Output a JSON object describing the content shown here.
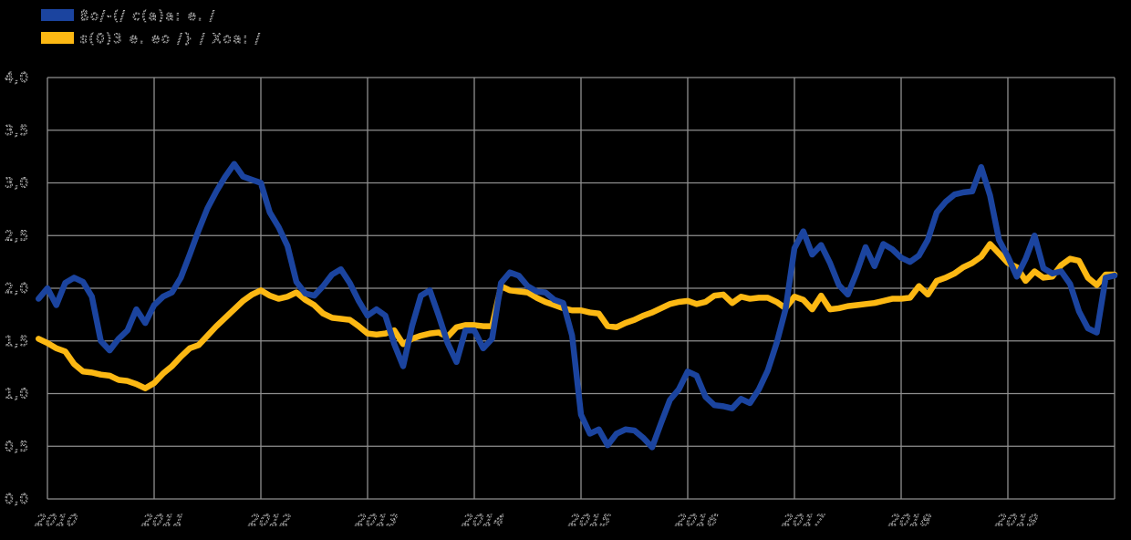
{
  "background_color": "#000000",
  "grid_color": "#8f8f8f",
  "label_color": "#b5b5b5",
  "chart_data": {
    "type": "line",
    "title": "",
    "xlabel": "",
    "ylabel": "",
    "grid": true,
    "legend_position": "top-left",
    "decimal_separator": ",",
    "ylim": [
      0,
      4
    ],
    "ytick_step": 0.5,
    "ytick_labels": [
      "0,0",
      "0,5",
      "1,0",
      "1,5",
      "2,0",
      "2,5",
      "3,0",
      "3,5",
      "4,0"
    ],
    "x_axis": {
      "labels": [
        "2010",
        "2011",
        "2012",
        "2013",
        "2014",
        "2015",
        "2016",
        "2017",
        "2018",
        "2019"
      ],
      "gridlines_every": "1 year",
      "label_style": "slanted outline"
    },
    "x_range": {
      "start": "2009-12",
      "end": "2020-01",
      "step": "1 month"
    },
    "series": [
      {
        "name": "ßo/-(/ c(a)a: e. /",
        "color": "#1b449f",
        "values": [
          1.9,
          2.0,
          1.84,
          2.05,
          2.1,
          2.06,
          1.92,
          1.5,
          1.41,
          1.52,
          1.6,
          1.8,
          1.67,
          1.84,
          1.92,
          1.96,
          2.1,
          2.32,
          2.55,
          2.76,
          2.92,
          3.06,
          3.18,
          3.06,
          3.03,
          3.0,
          2.72,
          2.58,
          2.4,
          2.06,
          1.95,
          1.93,
          2.02,
          2.13,
          2.18,
          2.05,
          1.88,
          1.74,
          1.8,
          1.74,
          1.47,
          1.26,
          1.64,
          1.93,
          1.98,
          1.74,
          1.48,
          1.3,
          1.6,
          1.6,
          1.43,
          1.52,
          2.05,
          2.15,
          2.12,
          2.02,
          1.97,
          1.96,
          1.89,
          1.86,
          1.55,
          0.8,
          0.62,
          0.66,
          0.51,
          0.62,
          0.66,
          0.65,
          0.58,
          0.49,
          0.72,
          0.94,
          1.04,
          1.21,
          1.17,
          0.97,
          0.89,
          0.88,
          0.86,
          0.95,
          0.91,
          1.04,
          1.22,
          1.48,
          1.8,
          2.38,
          2.54,
          2.32,
          2.41,
          2.24,
          2.03,
          1.94,
          2.15,
          2.39,
          2.21,
          2.42,
          2.37,
          2.29,
          2.25,
          2.31,
          2.46,
          2.72,
          2.82,
          2.89,
          2.91,
          2.92,
          3.15,
          2.88,
          2.46,
          2.3,
          2.11,
          2.28,
          2.5,
          2.19,
          2.14,
          2.16,
          2.04,
          1.78,
          1.62,
          1.58,
          2.1,
          2.12
        ]
      },
      {
        "name": "s(0)3 e. eo /} / Xoa: /",
        "color": "#fcb813",
        "values": [
          1.52,
          1.48,
          1.43,
          1.4,
          1.28,
          1.21,
          1.2,
          1.18,
          1.17,
          1.13,
          1.12,
          1.09,
          1.05,
          1.1,
          1.19,
          1.26,
          1.35,
          1.43,
          1.46,
          1.55,
          1.64,
          1.72,
          1.8,
          1.88,
          1.94,
          1.98,
          1.93,
          1.9,
          1.92,
          1.96,
          1.89,
          1.84,
          1.76,
          1.72,
          1.71,
          1.7,
          1.64,
          1.57,
          1.56,
          1.57,
          1.6,
          1.47,
          1.52,
          1.55,
          1.57,
          1.58,
          1.54,
          1.63,
          1.65,
          1.65,
          1.64,
          1.64,
          2.02,
          1.98,
          1.97,
          1.96,
          1.91,
          1.87,
          1.84,
          1.81,
          1.79,
          1.79,
          1.77,
          1.76,
          1.64,
          1.63,
          1.67,
          1.7,
          1.74,
          1.77,
          1.81,
          1.85,
          1.87,
          1.88,
          1.85,
          1.87,
          1.93,
          1.94,
          1.86,
          1.92,
          1.9,
          1.91,
          1.91,
          1.87,
          1.81,
          1.92,
          1.89,
          1.8,
          1.93,
          1.8,
          1.81,
          1.83,
          1.84,
          1.85,
          1.86,
          1.88,
          1.9,
          1.9,
          1.91,
          2.02,
          1.94,
          2.07,
          2.1,
          2.14,
          2.2,
          2.24,
          2.3,
          2.42,
          2.33,
          2.24,
          2.2,
          2.07,
          2.16,
          2.1,
          2.11,
          2.22,
          2.28,
          2.26,
          2.1,
          2.03,
          2.13,
          2.13
        ]
      }
    ]
  }
}
